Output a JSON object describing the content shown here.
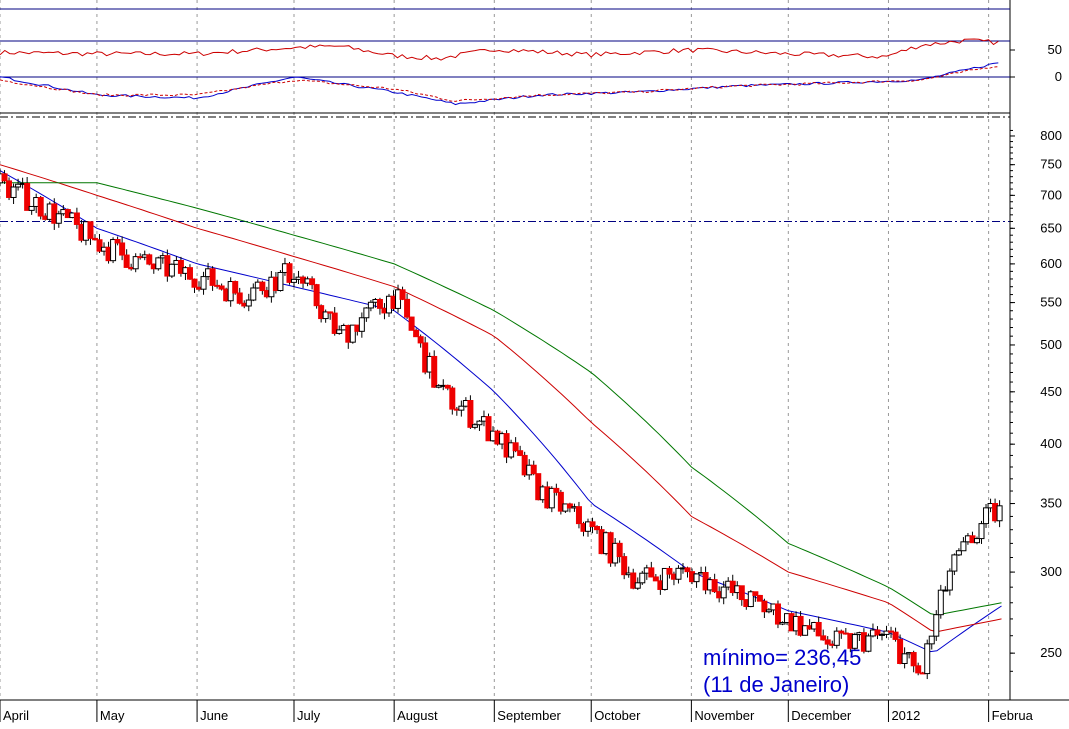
{
  "chart_data": [
    {
      "panel": "oscillator-top",
      "type": "line",
      "tick_labels": [
        "50"
      ],
      "series": [
        {
          "color": "#cc0000",
          "x": [
            "2011-04-01",
            "2011-05-01",
            "2011-06-01",
            "2011-07-01",
            "2011-07-15",
            "2011-08-01",
            "2011-08-15",
            "2011-09-01",
            "2011-10-01",
            "2011-11-01",
            "2011-12-01",
            "2011-12-31",
            "2012-01-11",
            "2012-01-25",
            "2012-02-05"
          ],
          "values": [
            45,
            42,
            42,
            55,
            58,
            38,
            32,
            52,
            40,
            50,
            42,
            36,
            60,
            70,
            65
          ]
        }
      ]
    },
    {
      "panel": "oscillator-bottom",
      "type": "line",
      "tick_labels": [
        "0"
      ],
      "series": [
        {
          "color": "#0000cc",
          "x": [
            "2011-04-01",
            "2011-05-01",
            "2011-06-01",
            "2011-07-01",
            "2011-08-01",
            "2011-08-20",
            "2011-09-15",
            "2011-10-15",
            "2011-11-15",
            "2011-12-15",
            "2012-01-11",
            "2012-02-05"
          ],
          "values": [
            0,
            -6,
            -7,
            0,
            -5,
            -9,
            -6,
            -5,
            -3,
            -2,
            -1,
            5
          ]
        },
        {
          "color": "#cc0000",
          "dashed": true,
          "x": [
            "2011-04-01",
            "2011-05-01",
            "2011-06-01",
            "2011-07-01",
            "2011-08-01",
            "2011-08-20",
            "2011-09-15",
            "2011-10-15",
            "2011-11-15",
            "2011-12-15",
            "2012-01-11",
            "2012-02-05"
          ],
          "values": [
            -1,
            -6,
            -6,
            -1,
            -4,
            -8,
            -6,
            -5,
            -3,
            -2,
            -1,
            4
          ]
        }
      ]
    },
    {
      "panel": "price",
      "type": "candlestick",
      "y_scale": "log",
      "ylim": [
        225,
        820
      ],
      "y_ticks": [
        800,
        750,
        700,
        650,
        600,
        550,
        500,
        450,
        400,
        350,
        300,
        250
      ],
      "reference_line": 660,
      "x_labels": [
        "April",
        "May",
        "June",
        "July",
        "August",
        "September",
        "October",
        "November",
        "December",
        "2012",
        "Februa"
      ],
      "candles": {
        "dates": [
          "2011-04-01",
          "2011-04-15",
          "2011-05-01",
          "2011-05-15",
          "2011-06-01",
          "2011-06-15",
          "2011-07-01",
          "2011-07-15",
          "2011-08-01",
          "2011-08-15",
          "2011-09-01",
          "2011-09-15",
          "2011-10-01",
          "2011-10-15",
          "2011-11-01",
          "2011-11-15",
          "2011-12-01",
          "2011-12-15",
          "2012-01-01",
          "2012-01-11",
          "2012-01-20",
          "2012-02-01",
          "2012-02-05"
        ],
        "close": [
          720,
          680,
          630,
          600,
          585,
          560,
          590,
          510,
          560,
          450,
          410,
          360,
          330,
          295,
          300,
          285,
          270,
          255,
          260,
          236.45,
          300,
          340,
          345
        ]
      },
      "series": [
        {
          "color": "#0000cc",
          "x": [
            "2011-04-01",
            "2011-05-01",
            "2011-06-01",
            "2011-07-01",
            "2011-08-01",
            "2011-09-01",
            "2011-10-01",
            "2011-11-01",
            "2011-12-01",
            "2012-01-01",
            "2012-01-15",
            "2012-02-05"
          ],
          "values": [
            740,
            650,
            600,
            570,
            540,
            450,
            350,
            300,
            275,
            262,
            250,
            278
          ]
        },
        {
          "color": "#cc0000",
          "x": [
            "2011-04-01",
            "2011-05-01",
            "2011-06-01",
            "2011-07-01",
            "2011-08-01",
            "2011-09-01",
            "2011-10-01",
            "2011-11-01",
            "2011-12-01",
            "2012-01-01",
            "2012-01-15",
            "2012-02-05"
          ],
          "values": [
            750,
            700,
            650,
            610,
            570,
            510,
            420,
            340,
            300,
            280,
            262,
            270
          ]
        },
        {
          "color": "#007700",
          "x": [
            "2011-04-01",
            "2011-05-01",
            "2011-06-01",
            "2011-07-01",
            "2011-08-01",
            "2011-09-01",
            "2011-10-01",
            "2011-11-01",
            "2011-12-01",
            "2012-01-01",
            "2012-01-15",
            "2012-02-05"
          ],
          "values": [
            720,
            720,
            680,
            640,
            600,
            540,
            470,
            380,
            320,
            290,
            272,
            280
          ]
        }
      ],
      "annotations": [
        "mínimo= 236,45",
        "(11 de Janeiro)"
      ]
    }
  ]
}
